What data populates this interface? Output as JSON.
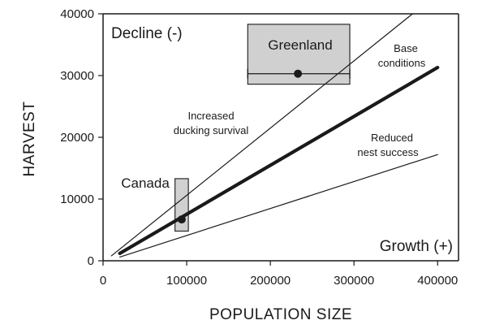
{
  "chart_data": {
    "type": "line",
    "xlabel": "POPULATION SIZE",
    "ylabel": "HARVEST",
    "xlim": [
      0,
      425000
    ],
    "ylim": [
      0,
      40000
    ],
    "xticks": [
      0,
      100000,
      200000,
      300000,
      400000
    ],
    "yticks": [
      0,
      10000,
      20000,
      30000,
      40000
    ],
    "grid": false,
    "series": [
      {
        "key": "increased",
        "label_lines": [
          "Increased",
          "ducking survival"
        ],
        "width": 1.2,
        "points": [
          [
            10000,
            800
          ],
          [
            370000,
            40000
          ]
        ]
      },
      {
        "key": "base",
        "label_lines": [
          "Base",
          "conditions"
        ],
        "width": 4.2,
        "points": [
          [
            20000,
            1200
          ],
          [
            400000,
            31300
          ]
        ]
      },
      {
        "key": "reduced",
        "label_lines": [
          "Reduced",
          "nest success"
        ],
        "width": 1.2,
        "points": [
          [
            20000,
            600
          ],
          [
            400000,
            17200
          ]
        ]
      }
    ],
    "regions": [
      {
        "key": "greenland",
        "label": "Greenland",
        "x_range": [
          173000,
          295000
        ],
        "y_range": [
          28600,
          38300
        ],
        "point": [
          233000,
          30300
        ],
        "error_x": [
          173000,
          295000
        ]
      },
      {
        "key": "canada",
        "label": "Canada",
        "x_range": [
          86000,
          102000
        ],
        "y_range": [
          4800,
          13300
        ],
        "point": [
          94000,
          6700
        ]
      }
    ],
    "annotations": {
      "decline": "Decline (-)",
      "growth": "Growth (+)"
    },
    "colors": {
      "ink": "#1a1a1a",
      "region_fill": "#d0d0d0",
      "region_stroke": "#2a2a2a"
    }
  }
}
